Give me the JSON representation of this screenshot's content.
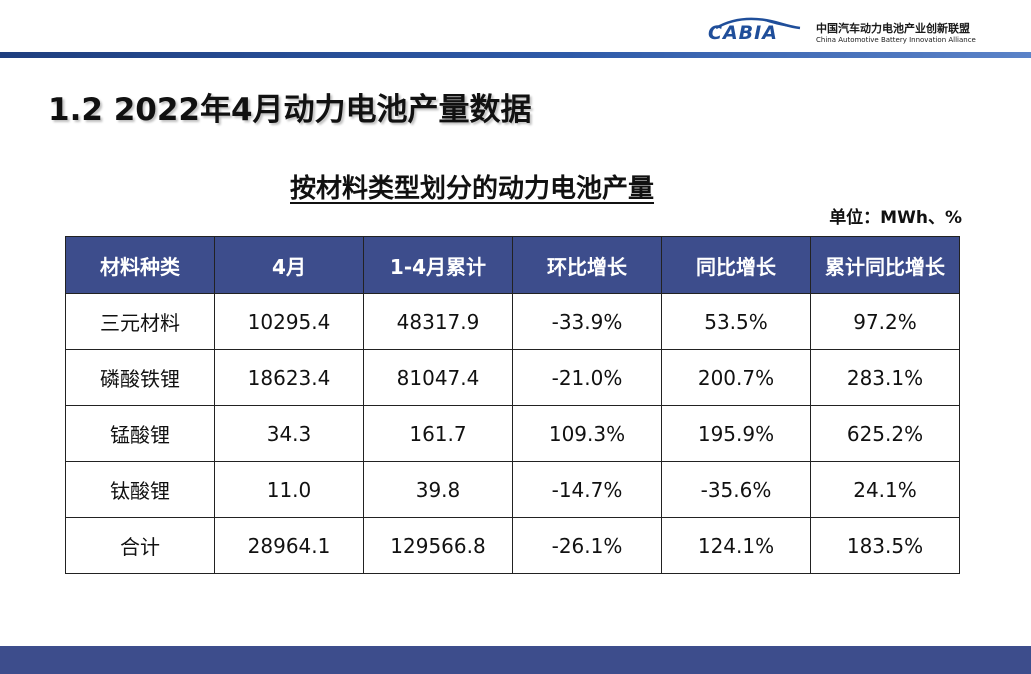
{
  "header": {
    "logo_text": "CABIA",
    "org_name_cn": "中国汽车动力电池产业创新联盟",
    "org_name_en": "China Automotive Battery Innovation Alliance"
  },
  "page_title": "1.2 2022年4月动力电池产量数据",
  "table_title": "按材料类型划分的动力电池产量",
  "unit": "单位：MWh、%",
  "table": {
    "headers": [
      "材料种类",
      "4月",
      "1-4月累计",
      "环比增长",
      "同比增长",
      "累计同比增长"
    ],
    "rows": [
      [
        "三元材料",
        "10295.4",
        "48317.9",
        "-33.9%",
        "53.5%",
        "97.2%"
      ],
      [
        "磷酸铁锂",
        "18623.4",
        "81047.4",
        "-21.0%",
        "200.7%",
        "283.1%"
      ],
      [
        "锰酸锂",
        "34.3",
        "161.7",
        "109.3%",
        "195.9%",
        "625.2%"
      ],
      [
        "钛酸锂",
        "11.0",
        "39.8",
        "-14.7%",
        "-35.6%",
        "24.1%"
      ],
      [
        "合计",
        "28964.1",
        "129566.8",
        "-26.1%",
        "124.1%",
        "183.5%"
      ]
    ]
  },
  "colors": {
    "header_fill": "#3d4d8c",
    "header_text": "#ffffff",
    "accent_rule": "#1f3f7f",
    "logo_blue": "#1f4e9a"
  }
}
